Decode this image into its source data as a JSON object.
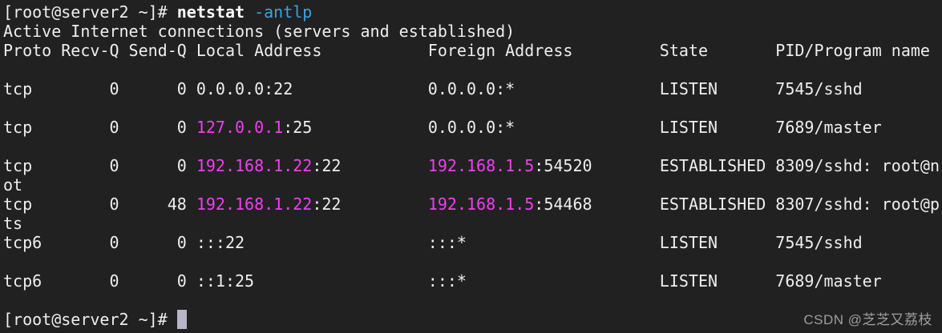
{
  "terminal": {
    "colors": {
      "bg": "#212121",
      "fg": "#eeeeee",
      "bold_fg": "#ffffff",
      "blue": "#3aa3e3",
      "magenta": "#ee3ff0",
      "cursor": "#b6b6c6",
      "watermark": "#9e9e9e"
    },
    "prompt": "[root@server2 ~]#",
    "command": "netstat -antlp",
    "lines": [
      {
        "name": "prompt-command-line",
        "segments": [
          {
            "t": "[root@server2 ~]# ",
            "s": "fg",
            "n": "shell-prompt"
          },
          {
            "t": "netstat",
            "s": "bold",
            "n": "command-name"
          },
          {
            "t": " ",
            "s": "fg"
          },
          {
            "t": "-antlp",
            "s": "blue",
            "n": "command-flags"
          }
        ]
      },
      {
        "name": "output-summary-line",
        "segments": [
          {
            "t": "Active Internet connections (servers and established)",
            "s": "fg"
          }
        ]
      },
      {
        "name": "table-header-line",
        "segments": [
          {
            "t": "Proto Recv-Q Send-Q Local Address           Foreign Address         State       PID/Program name",
            "s": "fg"
          }
        ]
      },
      {
        "name": "blank-line",
        "segments": []
      },
      {
        "name": "table-row",
        "segments": [
          {
            "t": "tcp        0      0 0.0.0.0:22              0.0.0.0:*               LISTEN      7545/sshd",
            "s": "fg"
          }
        ]
      },
      {
        "name": "blank-line",
        "segments": []
      },
      {
        "name": "table-row",
        "segments": [
          {
            "t": "tcp        0      0 ",
            "s": "fg"
          },
          {
            "t": "127.0.0.1",
            "s": "magenta",
            "n": "local-ip"
          },
          {
            "t": ":25            0.0.0.0:*               LISTEN      7689/master",
            "s": "fg"
          }
        ]
      },
      {
        "name": "blank-line",
        "segments": []
      },
      {
        "name": "table-row",
        "segments": [
          {
            "t": "tcp        0      0 ",
            "s": "fg"
          },
          {
            "t": "192.168.1.22",
            "s": "magenta",
            "n": "local-ip"
          },
          {
            "t": ":22         ",
            "s": "fg"
          },
          {
            "t": "192.168.1.5",
            "s": "magenta",
            "n": "foreign-ip"
          },
          {
            "t": ":54520       ESTABLISHED 8309/sshd: root@n",
            "s": "fg"
          }
        ]
      },
      {
        "name": "table-row-wrap",
        "segments": [
          {
            "t": "ot",
            "s": "fg"
          }
        ]
      },
      {
        "name": "table-row",
        "segments": [
          {
            "t": "tcp        0     48 ",
            "s": "fg"
          },
          {
            "t": "192.168.1.22",
            "s": "magenta",
            "n": "local-ip"
          },
          {
            "t": ":22         ",
            "s": "fg"
          },
          {
            "t": "192.168.1.5",
            "s": "magenta",
            "n": "foreign-ip"
          },
          {
            "t": ":54468       ESTABLISHED 8307/sshd: root@p",
            "s": "fg"
          }
        ]
      },
      {
        "name": "table-row-wrap",
        "segments": [
          {
            "t": "ts",
            "s": "fg"
          }
        ]
      },
      {
        "name": "table-row",
        "segments": [
          {
            "t": "tcp6       0      0 :::22                   :::*                    LISTEN      7545/sshd",
            "s": "fg"
          }
        ]
      },
      {
        "name": "blank-line",
        "segments": []
      },
      {
        "name": "table-row",
        "segments": [
          {
            "t": "tcp6       0      0 ::1:25                  :::*                    LISTEN      7689/master",
            "s": "fg"
          }
        ]
      },
      {
        "name": "blank-line",
        "segments": []
      },
      {
        "name": "prompt-line",
        "segments": [
          {
            "t": "[root@server2 ~]# ",
            "s": "fg",
            "n": "shell-prompt"
          },
          {
            "t": " ",
            "s": "cursor",
            "n": "cursor-block"
          }
        ]
      }
    ]
  },
  "watermark": {
    "text": "CSDN @芝芝又荔枝"
  }
}
